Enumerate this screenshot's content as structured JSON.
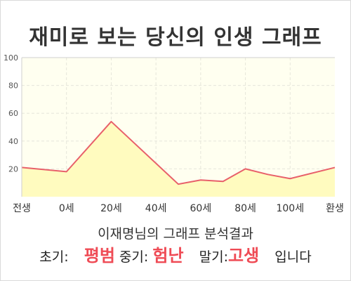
{
  "chart_data": {
    "type": "area",
    "title": "재미로 보는 당신의 인생 그래프",
    "xlabel": "",
    "ylabel": "",
    "ylim": [
      0,
      100
    ],
    "yticks": [
      20,
      40,
      60,
      80,
      100
    ],
    "xlim": [
      0,
      7
    ],
    "xticks": [
      {
        "x": 0,
        "label": "전생"
      },
      {
        "x": 1,
        "label": "0세"
      },
      {
        "x": 2,
        "label": "20세"
      },
      {
        "x": 3,
        "label": "40세"
      },
      {
        "x": 4,
        "label": "60세"
      },
      {
        "x": 5,
        "label": "80세"
      },
      {
        "x": 6,
        "label": "100세"
      },
      {
        "x": 7,
        "label": "환생"
      }
    ],
    "series": [
      {
        "x": [
          0,
          1,
          2,
          3.5,
          4,
          4.5,
          5,
          5.5,
          6,
          7
        ],
        "y": [
          21,
          18,
          54,
          9,
          12,
          11,
          20,
          16,
          13,
          21
        ]
      }
    ],
    "grid": true,
    "colors": {
      "line": "#e8606a",
      "fill": "#fffbbf",
      "plot_bg": "#fffff0",
      "grid": "#e6e6da"
    }
  },
  "analysis_title": "이재명님의 그래프 분석결과",
  "result": {
    "early_label": "초기:",
    "early_value": "평범",
    "mid_label": "중기:",
    "mid_value": "험난",
    "late_label": "말기:",
    "late_value": "고생",
    "suffix": "입니다"
  }
}
